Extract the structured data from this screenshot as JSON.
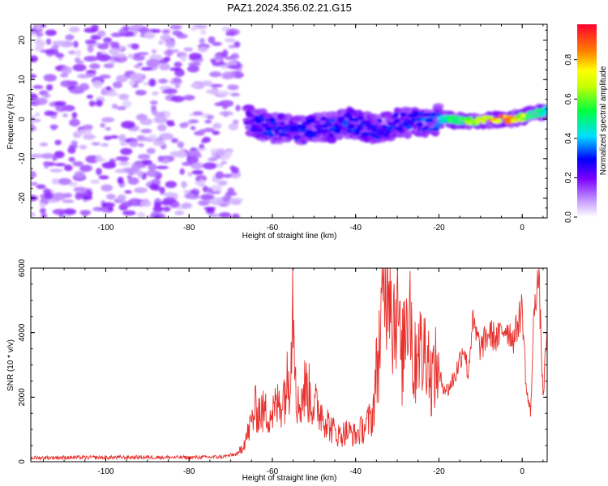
{
  "title": "PAZ1.2024.356.02.21.G15",
  "chart_data": [
    {
      "type": "heatmap",
      "xlabel": "Height of straight line (km)",
      "ylabel": "Frequency (Hz)",
      "xlim": [
        -118,
        6
      ],
      "ylim": [
        -25,
        24
      ],
      "xticks": [
        -100,
        -80,
        -60,
        -40,
        -20,
        0
      ],
      "yticks": [
        -20,
        -10,
        0,
        10,
        20
      ],
      "colorbar": {
        "label": "Normalized spectral amplitude",
        "range": [
          0,
          0.98
        ],
        "ticks": [
          0.0,
          0.2,
          0.4,
          0.6,
          0.8
        ]
      },
      "regions": [
        {
          "x_range": [
            -118,
            -68
          ],
          "y_range": [
            -25,
            24
          ],
          "amplitude": 0.1,
          "description": "diffuse noise"
        }
      ],
      "ridge": [
        {
          "x": -66,
          "y": 0,
          "amplitude": 0.25
        },
        {
          "x": -62,
          "y": -1.5,
          "amplitude": 0.3
        },
        {
          "x": -58,
          "y": -2.5,
          "amplitude": 0.3
        },
        {
          "x": -54,
          "y": -3,
          "amplitude": 0.3
        },
        {
          "x": -50,
          "y": -2,
          "amplitude": 0.28
        },
        {
          "x": -46,
          "y": -2,
          "amplitude": 0.3
        },
        {
          "x": -42,
          "y": -1,
          "amplitude": 0.32
        },
        {
          "x": -38,
          "y": -2,
          "amplitude": 0.3
        },
        {
          "x": -34,
          "y": -2.5,
          "amplitude": 0.28
        },
        {
          "x": -30,
          "y": -1,
          "amplitude": 0.3
        },
        {
          "x": -26,
          "y": -0.5,
          "amplitude": 0.3
        },
        {
          "x": -22,
          "y": -0.5,
          "amplitude": 0.35
        },
        {
          "x": -18,
          "y": 0,
          "amplitude": 0.5
        },
        {
          "x": -14,
          "y": -0.5,
          "amplitude": 0.6
        },
        {
          "x": -10,
          "y": -0.5,
          "amplitude": 0.7
        },
        {
          "x": -6,
          "y": 0,
          "amplitude": 0.85
        },
        {
          "x": -3,
          "y": 0,
          "amplitude": 0.95
        },
        {
          "x": 0,
          "y": 0.5,
          "amplitude": 0.7
        },
        {
          "x": 3,
          "y": 1.5,
          "amplitude": 0.55
        },
        {
          "x": 6,
          "y": 2,
          "amplitude": 0.5
        }
      ]
    },
    {
      "type": "line",
      "xlabel": "Height of straight line (km)",
      "ylabel": "SNR (10 * v/v)",
      "xlim": [
        -118,
        6
      ],
      "ylim": [
        0,
        6000
      ],
      "xticks": [
        -100,
        -80,
        -60,
        -40,
        -20,
        0
      ],
      "yticks": [
        0,
        2000,
        4000,
        6000
      ],
      "color": "#e8302c",
      "series": [
        {
          "x": [
            -118,
            -110,
            -100,
            -90,
            -80,
            -72,
            -68,
            -66,
            -64,
            -62,
            -60,
            -58,
            -56,
            -55,
            -54,
            -52,
            -50,
            -48,
            -46,
            -44,
            -42,
            -40,
            -38,
            -36,
            -34,
            -33,
            -32,
            -31,
            -30,
            -29,
            -28,
            -27,
            -26,
            -25,
            -24,
            -23,
            -22,
            -20,
            -18,
            -16,
            -14,
            -13,
            -12,
            -10,
            -8,
            -6,
            -4,
            -2,
            0,
            1,
            2,
            3,
            4,
            5,
            6
          ],
          "y": [
            120,
            130,
            130,
            140,
            130,
            150,
            250,
            700,
            1400,
            1300,
            1300,
            1600,
            2200,
            4700,
            1400,
            2000,
            1500,
            1300,
            900,
            700,
            800,
            700,
            900,
            1200,
            3500,
            4800,
            6000,
            3700,
            4600,
            2400,
            3900,
            4600,
            2200,
            3500,
            2600,
            3300,
            2200,
            2600,
            2200,
            2700,
            3600,
            2700,
            4300,
            3500,
            4000,
            3800,
            4200,
            3800,
            4800,
            2200,
            1500,
            5100,
            5700,
            2000,
            4100
          ]
        }
      ]
    }
  ]
}
